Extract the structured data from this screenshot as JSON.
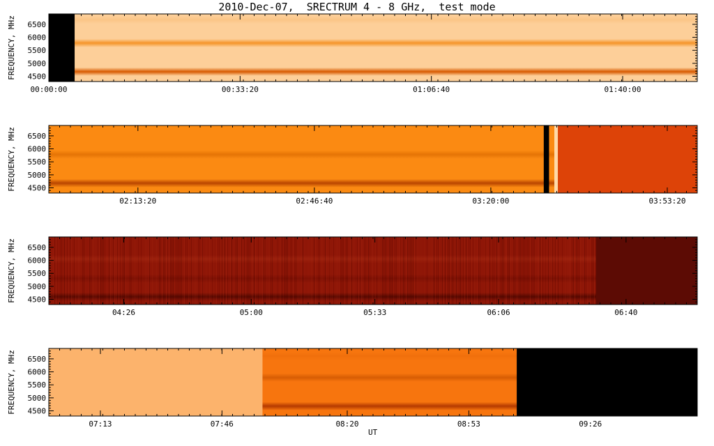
{
  "title": "2010-Dec-07,  SRECTRUM 4 - 8 GHz,  test mode",
  "xaxis_label": "UT",
  "chart_data": {
    "type": "heatmap",
    "title": "2010-Dec-07,  SRECTRUM 4 - 8 GHz,  test mode",
    "xlabel": "UT",
    "ylabel": "FREQUENCY, MHz",
    "ylim": [
      4300,
      6900
    ],
    "yticks": [
      "4500",
      "5000",
      "5500",
      "6000",
      "6500"
    ],
    "panels": [
      {
        "xlim": [
          "00:00:00",
          "01:53:00"
        ],
        "xticks": [
          "00:00:00",
          "00:33:20",
          "01:06:40",
          "01:40:00"
        ],
        "background": "#fdcf99",
        "bands": [
          {
            "freq": 4680,
            "color": "#d85a00",
            "strength": 1.0
          },
          {
            "freq": 5780,
            "color": "#f38a16",
            "strength": 0.85
          },
          {
            "freq": 6680,
            "color": "#f7b56b",
            "strength": 0.4
          }
        ],
        "segments": [
          {
            "start": "00:00:00",
            "end": "00:04:30",
            "color": "#000000"
          }
        ]
      },
      {
        "xlim": [
          "01:56:30",
          "03:59:00"
        ],
        "xticks": [
          "02:13:20",
          "02:46:40",
          "03:20:00",
          "03:53:20"
        ],
        "background": "#fb8a12",
        "bands": [
          {
            "freq": 4680,
            "color": "#b94500",
            "strength": 1.0
          },
          {
            "freq": 5780,
            "color": "#dc6a00",
            "strength": 0.7
          }
        ],
        "segments": [
          {
            "start": "03:30:00",
            "end": "03:31:00",
            "color": "#000000"
          },
          {
            "start": "03:32:00",
            "end": "03:32:40",
            "color": "#ffd9a8"
          },
          {
            "start": "03:32:40",
            "end": "03:59:00",
            "color": "#dd4308"
          }
        ]
      },
      {
        "xlim": [
          "04:06:00",
          "06:59:00"
        ],
        "xticks": [
          "04:26",
          "05:00",
          "05:33",
          "06:06",
          "06:40"
        ],
        "background": "#8d1506",
        "bands": [
          {
            "freq": 4600,
            "color": "#4a0600",
            "strength": 0.8
          },
          {
            "freq": 5300,
            "color": "#6a0a00",
            "strength": 0.5
          },
          {
            "freq": 6050,
            "color": "#a72a12",
            "strength": 0.5
          }
        ],
        "segments": [
          {
            "start": "06:32:00",
            "end": "06:59:00",
            "color": "#5c0b04"
          }
        ]
      },
      {
        "xlim": [
          "06:59:00",
          "09:55:00"
        ],
        "xticks": [
          "07:13",
          "07:46",
          "08:20",
          "08:53",
          "09:26"
        ],
        "background": "#fcb36c",
        "bands": [],
        "segments": [
          {
            "start": "07:57:00",
            "end": "09:06:00",
            "color": "#f7750e",
            "bands": [
              {
                "freq": 4680,
                "color": "#b43a00",
                "strength": 1.0
              },
              {
                "freq": 5780,
                "color": "#cc5400",
                "strength": 0.75
              },
              {
                "freq": 6600,
                "color": "#e7680a",
                "strength": 0.4
              }
            ]
          },
          {
            "start": "09:06:00",
            "end": "09:55:00",
            "color": "#000000"
          }
        ]
      }
    ]
  }
}
